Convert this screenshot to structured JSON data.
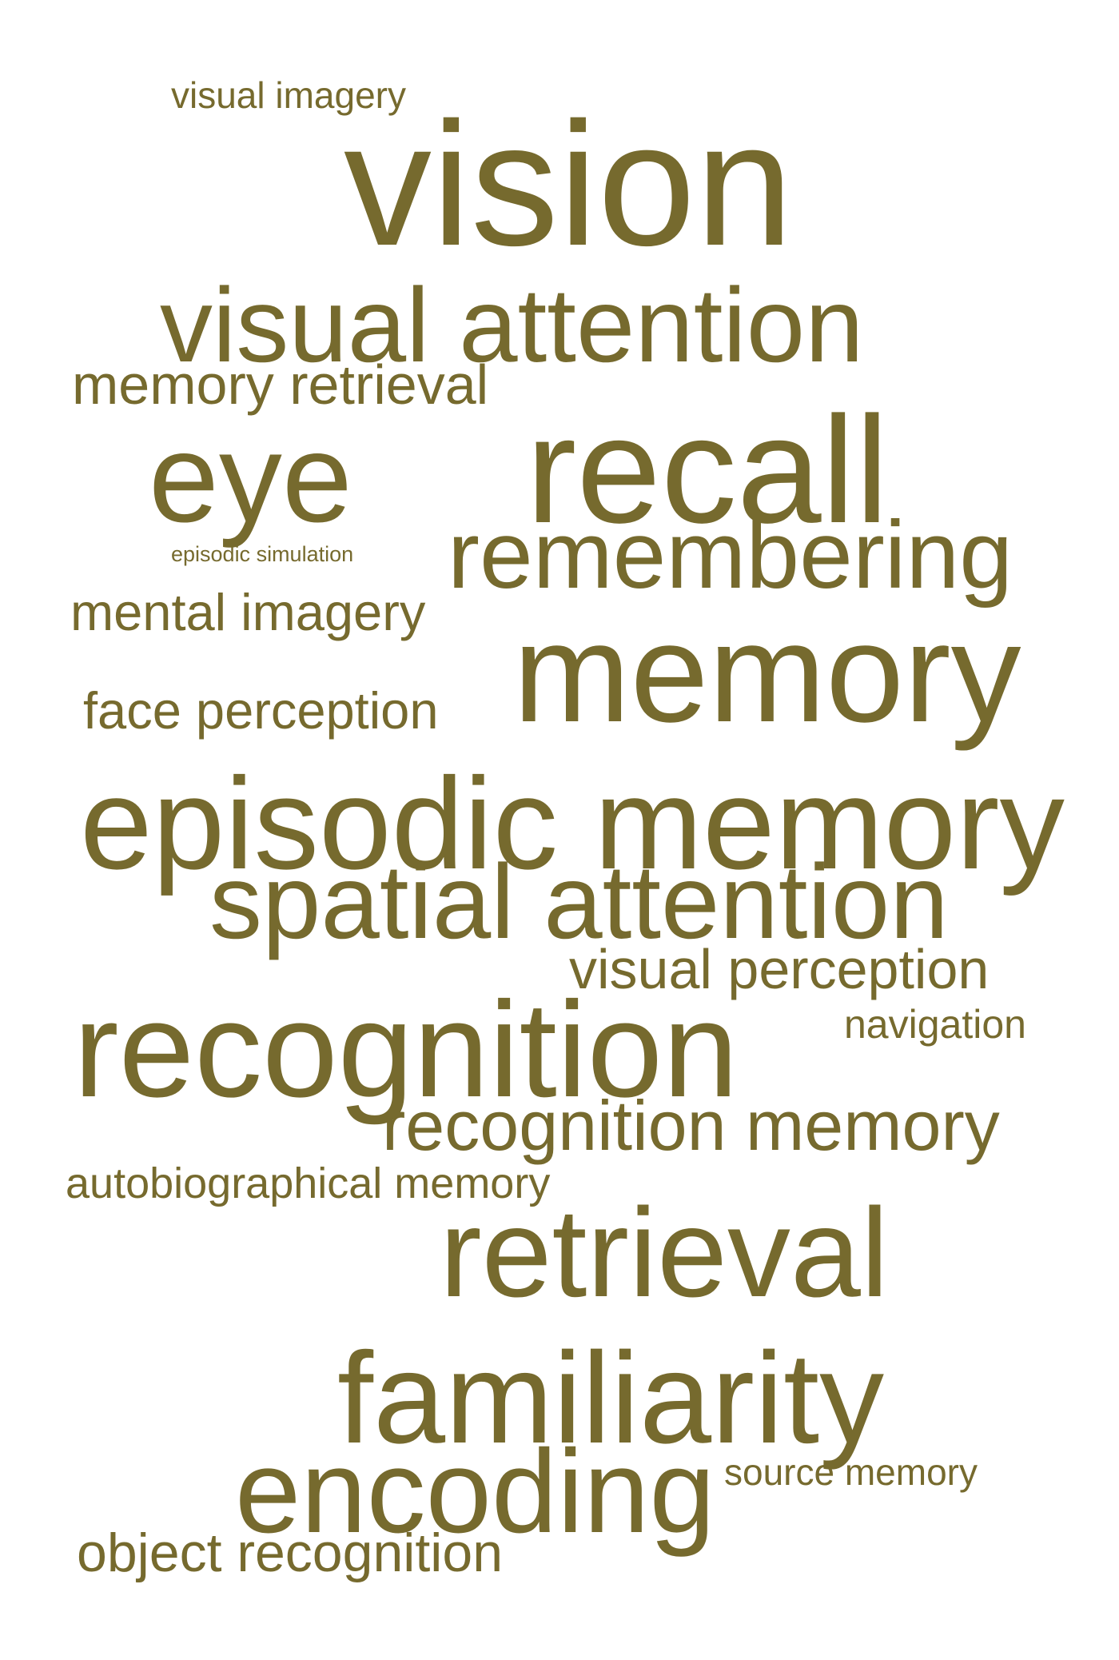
{
  "colors": {
    "text": "#766A2E",
    "background": "#FFFFFF"
  },
  "words": [
    {
      "id": "visual-imagery",
      "text": "visual imagery"
    },
    {
      "id": "vision",
      "text": "vision"
    },
    {
      "id": "visual-attention",
      "text": "visual attention"
    },
    {
      "id": "memory-retrieval",
      "text": "memory retrieval"
    },
    {
      "id": "eye",
      "text": "eye"
    },
    {
      "id": "recall",
      "text": "recall"
    },
    {
      "id": "episodic-simulation",
      "text": "episodic simulation"
    },
    {
      "id": "remembering",
      "text": "remembering"
    },
    {
      "id": "mental-imagery",
      "text": "mental imagery"
    },
    {
      "id": "memory",
      "text": "memory"
    },
    {
      "id": "face-perception",
      "text": "face perception"
    },
    {
      "id": "episodic-memory",
      "text": "episodic memory"
    },
    {
      "id": "spatial-attention",
      "text": "spatial attention"
    },
    {
      "id": "visual-perception",
      "text": "visual perception"
    },
    {
      "id": "navigation",
      "text": "navigation"
    },
    {
      "id": "recognition",
      "text": "recognition"
    },
    {
      "id": "recognition-memory",
      "text": "recognition memory"
    },
    {
      "id": "autobiographical-memory",
      "text": "autobiographical memory"
    },
    {
      "id": "retrieval",
      "text": "retrieval"
    },
    {
      "id": "familiarity",
      "text": "familiarity"
    },
    {
      "id": "source-memory",
      "text": "source memory"
    },
    {
      "id": "encoding",
      "text": "encoding"
    },
    {
      "id": "object-recognition",
      "text": "object recognition"
    }
  ]
}
